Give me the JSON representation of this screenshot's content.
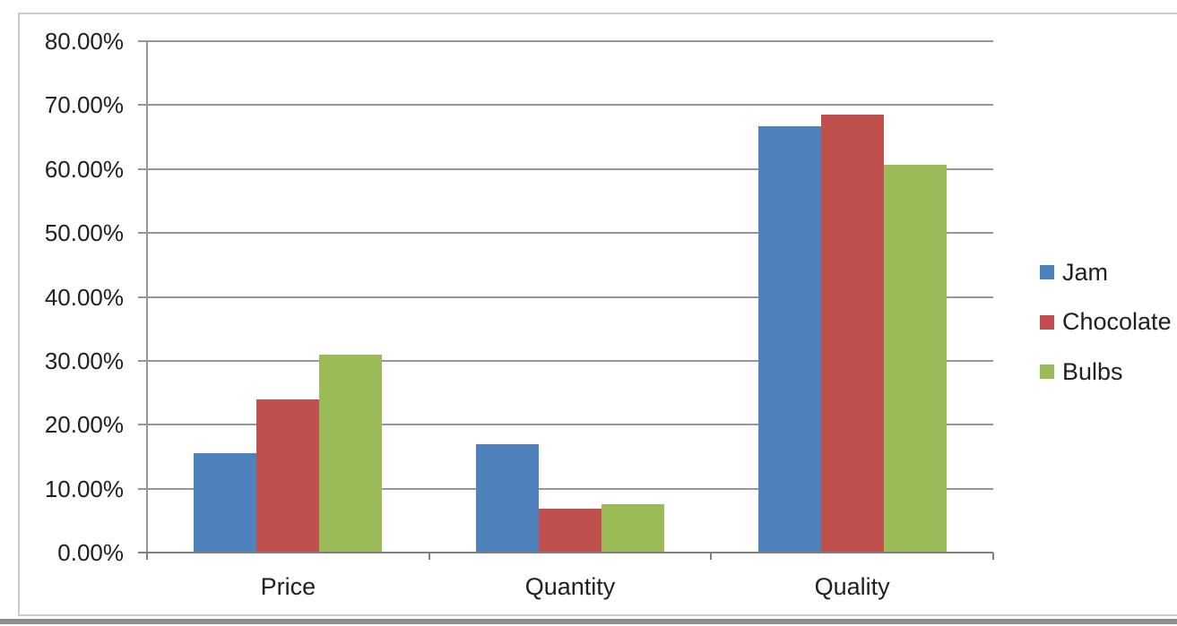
{
  "chart_data": {
    "type": "bar",
    "categories": [
      "Price",
      "Quantity",
      "Quality"
    ],
    "series": [
      {
        "name": "Jam",
        "color": "#4F81BD",
        "values": [
          15.6,
          17.0,
          66.7
        ]
      },
      {
        "name": "Chocolate",
        "color": "#C0504D",
        "values": [
          23.9,
          6.9,
          68.5
        ]
      },
      {
        "name": "Bulbs",
        "color": "#9BBB59",
        "values": [
          31.0,
          7.5,
          60.6
        ]
      }
    ],
    "ylim": [
      0,
      80
    ],
    "ytick_step": 10,
    "ytick_labels": [
      "0.00%",
      "10.00%",
      "20.00%",
      "30.00%",
      "40.00%",
      "50.00%",
      "60.00%",
      "70.00%",
      "80.00%"
    ],
    "grid": true,
    "legend_position": "right",
    "value_format": "percent"
  },
  "colors": {
    "background": "#ffffff",
    "gridline": "#969696",
    "axis": "#7f7f7f",
    "frame_border": "#c9c9c9",
    "bottom_bar": "#8e8e8e",
    "text": "#1f1f1f"
  }
}
